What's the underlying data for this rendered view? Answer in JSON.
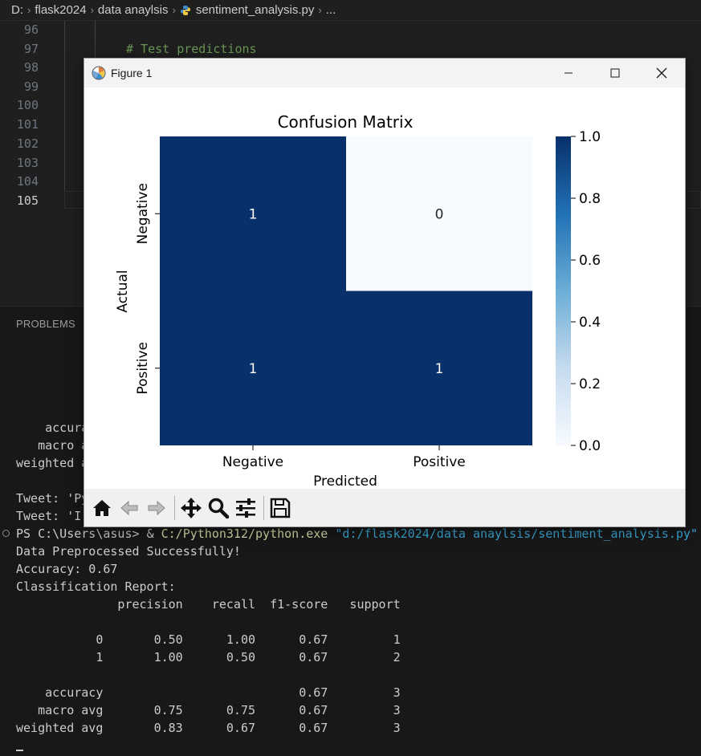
{
  "breadcrumb": {
    "drive": "D:",
    "folder1": "flask2024",
    "folder2": "data anaylsis",
    "file": "sentiment_analysis.py",
    "more": "..."
  },
  "editor": {
    "line_numbers": [
      "96",
      "97",
      "98",
      "99",
      "100",
      "101",
      "102",
      "103",
      "104",
      "105"
    ],
    "active_line": "105",
    "comment": "# Test predictions"
  },
  "panel": {
    "tab_label": "PROBLEMS",
    "hidden_lines": {
      "accuracy": "    accura",
      "macro": "   macro a",
      "weighted": "weighted a",
      "tweet1": "Tweet: 'Py",
      "tweet2": "Tweet: 'I"
    },
    "prompt": "PS C:\\Users\\asus> ",
    "amp": "& ",
    "python_path": "C:/Python312/python.exe",
    "script_path": " \"d:/flask2024/data anaylsis/sentiment_analysis.py\"",
    "output": [
      "Data Preprocessed Successfully!",
      "Accuracy: 0.67",
      "Classification Report:",
      "              precision    recall  f1-score   support",
      "",
      "           0       0.50      1.00      0.67         1",
      "           1       1.00      0.50      0.67         2",
      "",
      "    accuracy                           0.67         3",
      "   macro avg       0.75      0.75      0.67         3",
      "weighted avg       0.83      0.67      0.67         3"
    ]
  },
  "figure": {
    "window_title": "Figure 1",
    "toolbar_icons": [
      "home-icon",
      "back-icon",
      "forward-icon",
      "pan-icon",
      "zoom-icon",
      "configure-icon",
      "save-icon"
    ]
  },
  "chart_data": {
    "type": "heatmap",
    "title": "Confusion Matrix",
    "xlabel": "Predicted",
    "ylabel": "Actual",
    "x_categories": [
      "Negative",
      "Positive"
    ],
    "y_categories": [
      "Negative",
      "Positive"
    ],
    "values": [
      [
        1,
        0
      ],
      [
        1,
        1
      ]
    ],
    "colormap": "Blues",
    "colorbar": {
      "min": 0.0,
      "max": 1.0,
      "ticks": [
        "0.0",
        "0.2",
        "0.4",
        "0.6",
        "0.8",
        "1.0"
      ]
    },
    "colors": {
      "high": "#08306b",
      "low": "#f7fbff"
    }
  }
}
